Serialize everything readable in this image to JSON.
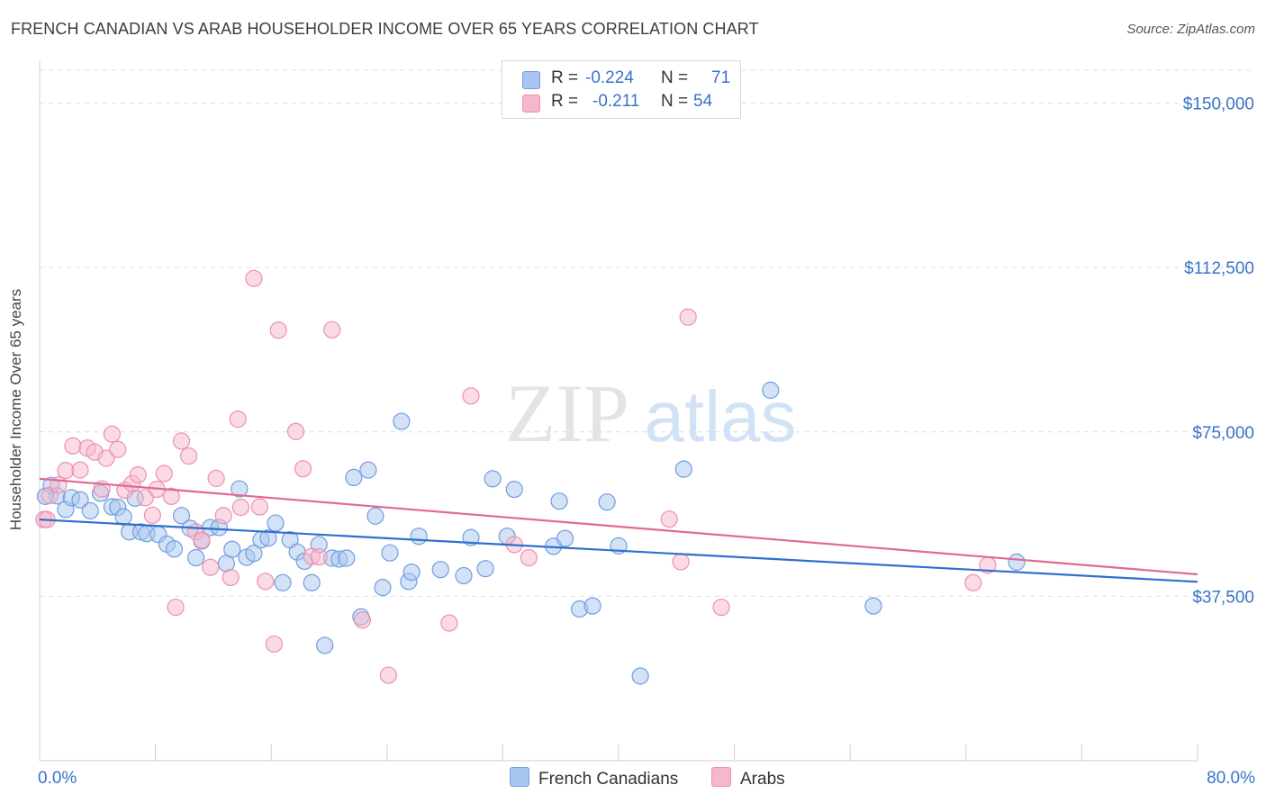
{
  "header": {
    "title": "FRENCH CANADIAN VS ARAB HOUSEHOLDER INCOME OVER 65 YEARS CORRELATION CHART",
    "source": "Source: ZipAtlas.com"
  },
  "watermark": {
    "zip": "ZIP",
    "atlas": "atlas"
  },
  "legend": {
    "rows": [
      {
        "r_label": "R =",
        "r_value": "-0.224",
        "n_label": "N =",
        "n_value": "71",
        "color": "#a9c6f0"
      },
      {
        "r_label": "R =",
        "r_value": "-0.211",
        "n_label": "N =",
        "n_value": "54",
        "color": "#f5b8cb"
      }
    ]
  },
  "bottom_legend": [
    {
      "label": "French Canadians",
      "color": "#a9c6f0"
    },
    {
      "label": "Arabs",
      "color": "#f5b8cb"
    }
  ],
  "chart_data": {
    "type": "scatter",
    "ylabel": "Householder Income Over 65 years",
    "xlim": [
      0,
      80
    ],
    "ylim": [
      0,
      157500
    ],
    "x_tick_labels": [
      {
        "value": 0,
        "label": "0.0%"
      },
      {
        "value": 80,
        "label": "80.0%"
      }
    ],
    "y_ticks": [
      {
        "value": 37500,
        "label": "$37,500"
      },
      {
        "value": 75000,
        "label": "$75,000"
      },
      {
        "value": 112500,
        "label": "$112,500"
      },
      {
        "value": 150000,
        "label": "$150,000"
      }
    ],
    "grid": true,
    "legend_position": "top-center",
    "series": [
      {
        "name": "French Canadians",
        "color": "#a9c6f0",
        "stroke": "#6f9edf",
        "trend_color": "#2f6fce",
        "trend": {
          "x": [
            0,
            80
          ],
          "y": [
            55000,
            40800
          ]
        },
        "points": [
          [
            0.8,
            62800
          ],
          [
            1.2,
            60400
          ],
          [
            1.8,
            57300
          ],
          [
            2.2,
            60000
          ],
          [
            2.8,
            59500
          ],
          [
            3.5,
            57000
          ],
          [
            4.2,
            61000
          ],
          [
            5.0,
            57900
          ],
          [
            5.4,
            57800
          ],
          [
            5.8,
            55600
          ],
          [
            6.2,
            52200
          ],
          [
            6.6,
            59900
          ],
          [
            7.0,
            52200
          ],
          [
            7.4,
            51800
          ],
          [
            8.2,
            51600
          ],
          [
            8.8,
            49400
          ],
          [
            9.3,
            48300
          ],
          [
            9.8,
            55900
          ],
          [
            10.4,
            53000
          ],
          [
            10.8,
            46300
          ],
          [
            11.2,
            50100
          ],
          [
            11.8,
            53200
          ],
          [
            12.4,
            53200
          ],
          [
            12.9,
            45000
          ],
          [
            13.3,
            48200
          ],
          [
            13.8,
            62000
          ],
          [
            14.3,
            46400
          ],
          [
            14.8,
            47300
          ],
          [
            15.3,
            50400
          ],
          [
            15.8,
            50800
          ],
          [
            16.3,
            54200
          ],
          [
            16.8,
            40600
          ],
          [
            17.3,
            50400
          ],
          [
            17.8,
            47600
          ],
          [
            18.3,
            45500
          ],
          [
            18.8,
            40600
          ],
          [
            19.3,
            49300
          ],
          [
            19.7,
            26300
          ],
          [
            20.2,
            46200
          ],
          [
            20.7,
            46000
          ],
          [
            21.2,
            46200
          ],
          [
            21.7,
            64600
          ],
          [
            22.2,
            32800
          ],
          [
            22.7,
            66300
          ],
          [
            23.2,
            55800
          ],
          [
            23.7,
            39500
          ],
          [
            24.2,
            47400
          ],
          [
            25.0,
            77400
          ],
          [
            25.5,
            40900
          ],
          [
            25.7,
            43000
          ],
          [
            26.2,
            51200
          ],
          [
            27.7,
            43600
          ],
          [
            29.3,
            42200
          ],
          [
            29.8,
            50900
          ],
          [
            30.8,
            43800
          ],
          [
            31.3,
            64300
          ],
          [
            32.3,
            51200
          ],
          [
            32.8,
            61900
          ],
          [
            35.5,
            48900
          ],
          [
            35.9,
            59200
          ],
          [
            36.3,
            50700
          ],
          [
            37.3,
            34600
          ],
          [
            38.2,
            35300
          ],
          [
            39.2,
            59000
          ],
          [
            40.0,
            49000
          ],
          [
            41.5,
            19300
          ],
          [
            44.5,
            66500
          ],
          [
            50.5,
            84500
          ],
          [
            57.6,
            35300
          ],
          [
            67.5,
            45300
          ],
          [
            0.4,
            60300
          ]
        ]
      },
      {
        "name": "Arabs",
        "color": "#f5b8cb",
        "stroke": "#ee8fae",
        "trend_color": "#e06a92",
        "trend": {
          "x": [
            0,
            80
          ],
          "y": [
            64300,
            42500
          ]
        },
        "points": [
          [
            0.3,
            55000
          ],
          [
            0.7,
            60500
          ],
          [
            1.3,
            62900
          ],
          [
            1.8,
            66200
          ],
          [
            2.3,
            71800
          ],
          [
            2.8,
            66300
          ],
          [
            3.3,
            71300
          ],
          [
            3.8,
            70400
          ],
          [
            4.3,
            62000
          ],
          [
            4.6,
            69000
          ],
          [
            5.0,
            74500
          ],
          [
            5.4,
            71000
          ],
          [
            5.9,
            61700
          ],
          [
            6.4,
            63200
          ],
          [
            6.8,
            65200
          ],
          [
            7.3,
            60000
          ],
          [
            7.8,
            56000
          ],
          [
            8.1,
            61900
          ],
          [
            8.6,
            65500
          ],
          [
            9.1,
            60300
          ],
          [
            9.4,
            35000
          ],
          [
            9.8,
            72900
          ],
          [
            10.3,
            69500
          ],
          [
            10.8,
            52200
          ],
          [
            11.2,
            50300
          ],
          [
            11.8,
            44100
          ],
          [
            12.2,
            64400
          ],
          [
            12.7,
            55900
          ],
          [
            13.2,
            41800
          ],
          [
            13.7,
            77900
          ],
          [
            13.9,
            57800
          ],
          [
            14.8,
            110000
          ],
          [
            15.2,
            57900
          ],
          [
            15.6,
            40900
          ],
          [
            16.2,
            26600
          ],
          [
            16.5,
            98200
          ],
          [
            17.7,
            75100
          ],
          [
            18.2,
            66600
          ],
          [
            18.8,
            46600
          ],
          [
            19.3,
            46500
          ],
          [
            20.2,
            98300
          ],
          [
            22.3,
            32100
          ],
          [
            24.1,
            19500
          ],
          [
            28.3,
            31400
          ],
          [
            29.8,
            83200
          ],
          [
            32.8,
            49300
          ],
          [
            33.8,
            46300
          ],
          [
            43.5,
            55100
          ],
          [
            44.3,
            45400
          ],
          [
            44.8,
            101200
          ],
          [
            47.1,
            35000
          ],
          [
            64.5,
            40600
          ],
          [
            65.5,
            44600
          ],
          [
            0.5,
            55000
          ]
        ]
      }
    ]
  }
}
